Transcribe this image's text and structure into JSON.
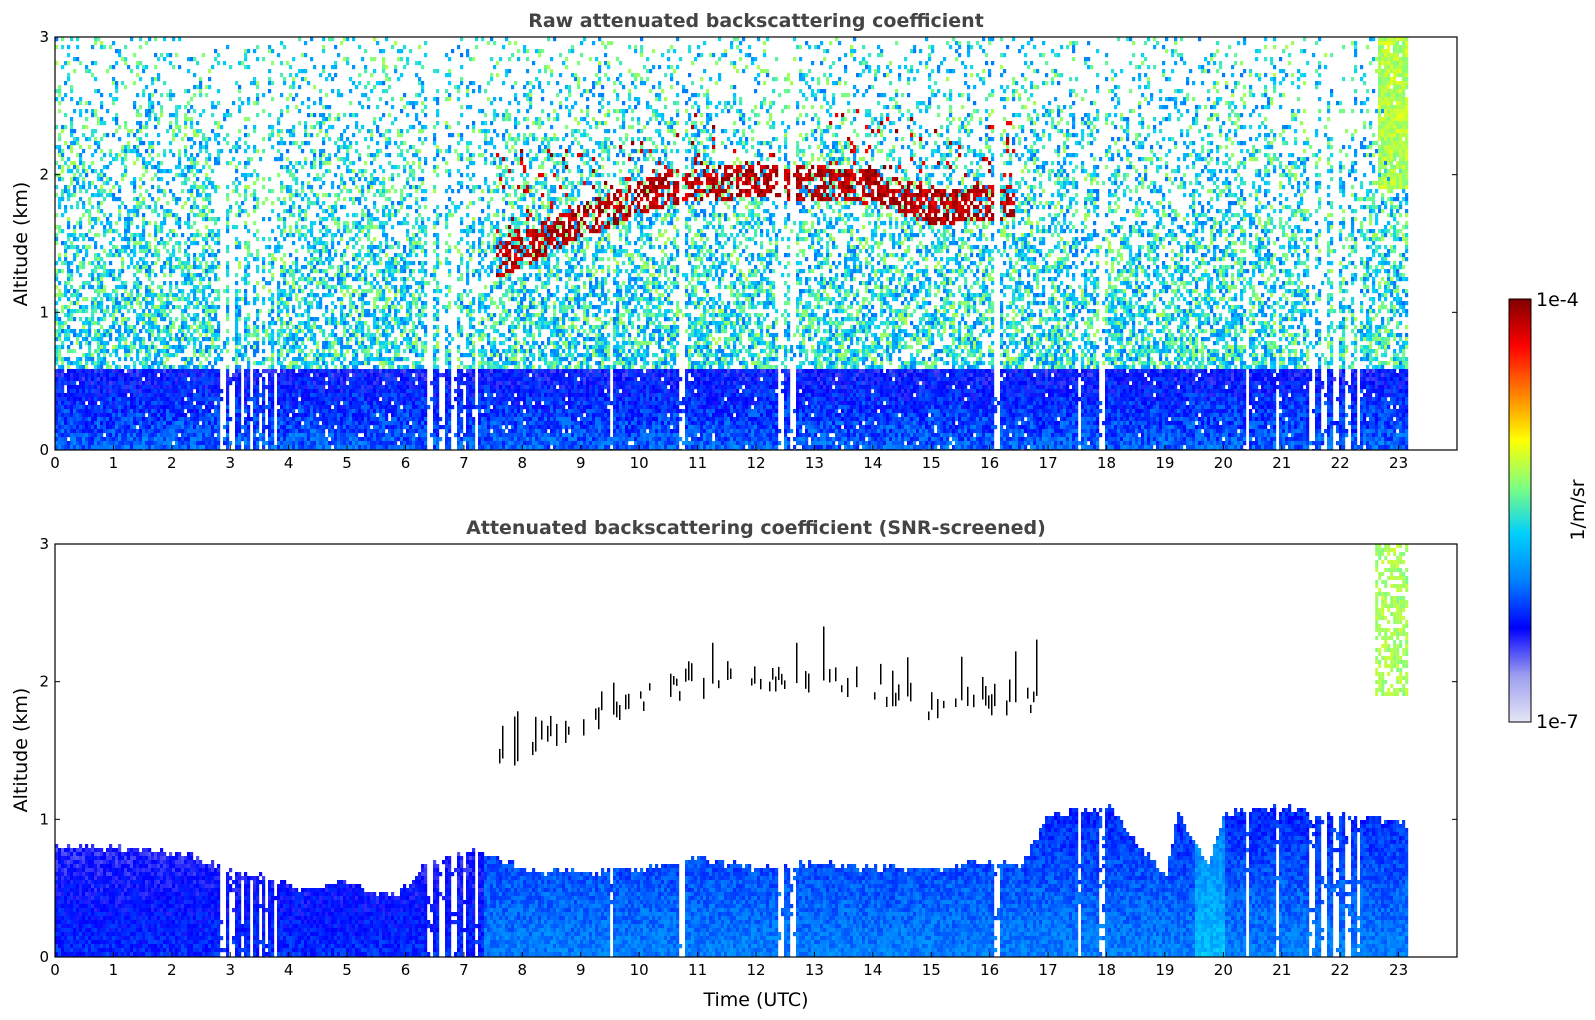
{
  "chart_data": [
    {
      "type": "heatmap",
      "title": "Raw attenuated backscattering coefficient",
      "xlabel": "",
      "ylabel": "Altitude (km)",
      "xlim": [
        0,
        24
      ],
      "ylim": [
        0,
        3
      ],
      "x_ticks": [
        "0",
        "1",
        "2",
        "3",
        "4",
        "5",
        "6",
        "7",
        "8",
        "9",
        "10",
        "11",
        "12",
        "13",
        "14",
        "15",
        "16",
        "17",
        "18",
        "19",
        "20",
        "21",
        "22",
        "23"
      ],
      "y_ticks": [
        "0",
        "1",
        "2",
        "3"
      ],
      "data_end_hour": 23.15,
      "boundary_layer_top_km": 0.6,
      "cloud_layer": {
        "time_range": [
          7.5,
          16.4
        ],
        "base_altitude_km": [
          [
            7.5,
            1.3
          ],
          [
            9.0,
            1.6
          ],
          [
            10.5,
            1.85
          ],
          [
            12.0,
            1.9
          ],
          [
            14.0,
            1.85
          ],
          [
            15.0,
            1.7
          ],
          [
            16.4,
            1.75
          ]
        ],
        "upper_fragments_km": [
          [
            8.0,
            2.2
          ],
          [
            10.0,
            2.3
          ],
          [
            11.0,
            2.5
          ],
          [
            12.0,
            2.1
          ],
          [
            13.5,
            2.5
          ],
          [
            15.0,
            2.4
          ]
        ]
      },
      "high_cloud": {
        "time_range": [
          22.6,
          23.15
        ],
        "altitude_range_km": [
          1.9,
          3.0
        ]
      },
      "data_gaps_hours": [
        2.85,
        3.0,
        3.2,
        3.35,
        3.5,
        3.6,
        3.75,
        6.4,
        6.6,
        6.8,
        7.0,
        7.2,
        9.5,
        10.7,
        12.4,
        12.6,
        16.1,
        17.5,
        17.9,
        20.4,
        20.9,
        21.5,
        21.7,
        21.9,
        22.1,
        22.3
      ]
    },
    {
      "type": "heatmap",
      "title": "Attenuated backscattering coefficient (SNR-screened)",
      "xlabel": "Time (UTC)",
      "ylabel": "Altitude (km)",
      "xlim": [
        0,
        24
      ],
      "ylim": [
        0,
        3
      ],
      "x_ticks": [
        "0",
        "1",
        "2",
        "3",
        "4",
        "5",
        "6",
        "7",
        "8",
        "9",
        "10",
        "11",
        "12",
        "13",
        "14",
        "15",
        "16",
        "17",
        "18",
        "19",
        "20",
        "21",
        "22",
        "23"
      ],
      "y_ticks": [
        "0",
        "1",
        "2",
        "3"
      ],
      "boundary_layer_top_km": [
        [
          0,
          0.82
        ],
        [
          1,
          0.8
        ],
        [
          2,
          0.78
        ],
        [
          2.8,
          0.68
        ],
        [
          3.5,
          0.6
        ],
        [
          4.2,
          0.52
        ],
        [
          5,
          0.55
        ],
        [
          5.8,
          0.45
        ],
        [
          6.3,
          0.68
        ],
        [
          7.2,
          0.8
        ],
        [
          8,
          0.65
        ],
        [
          9,
          0.62
        ],
        [
          10,
          0.65
        ],
        [
          11,
          0.72
        ],
        [
          12,
          0.66
        ],
        [
          13,
          0.7
        ],
        [
          14,
          0.65
        ],
        [
          15,
          0.66
        ],
        [
          16,
          0.7
        ],
        [
          16.5,
          0.68
        ],
        [
          17,
          1.05
        ],
        [
          18,
          1.1
        ],
        [
          18.5,
          0.85
        ],
        [
          19,
          0.6
        ],
        [
          19.2,
          1.05
        ],
        [
          19.7,
          0.68
        ],
        [
          20,
          1.05
        ],
        [
          21,
          1.1
        ],
        [
          22,
          1.05
        ],
        [
          23,
          1.0
        ],
        [
          23.15,
          0.98
        ]
      ]
    }
  ],
  "colorbar": {
    "label": "1/m/sr",
    "max_label": "1e-4",
    "min_label": "1e-7",
    "scale": "log",
    "colormap": "jet",
    "colors": [
      "#e6e6f7",
      "#9c9cf0",
      "#0000ff",
      "#0080ff",
      "#00d0ff",
      "#7fff80",
      "#ffff00",
      "#ff8000",
      "#ff0000",
      "#800000"
    ]
  }
}
